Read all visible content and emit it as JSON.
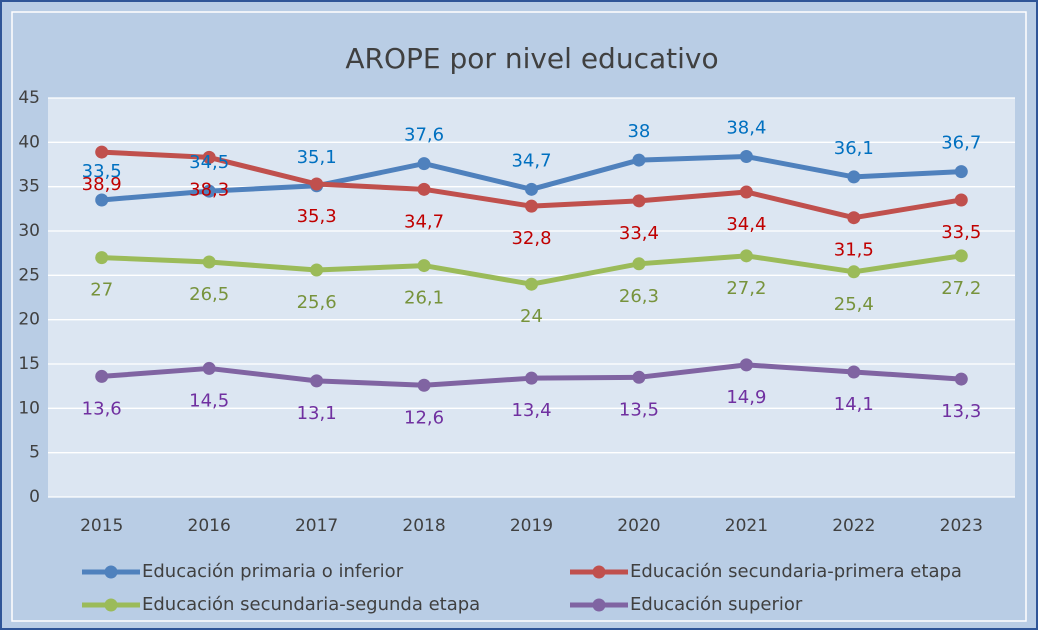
{
  "chart_data": {
    "type": "line",
    "title": "AROPE por nivel educativo",
    "categories": [
      "2015",
      "2016",
      "2017",
      "2018",
      "2019",
      "2020",
      "2021",
      "2022",
      "2023"
    ],
    "ylim": [
      0,
      45
    ],
    "yticks": [
      0,
      5,
      10,
      15,
      20,
      25,
      30,
      35,
      40,
      45
    ],
    "grid": true,
    "legend": "bottom",
    "series": [
      {
        "name": "Educación primaria o inferior",
        "color": "#4f81bd",
        "label_color": "#0070c0",
        "label_position": "above",
        "values": [
          33.5,
          34.5,
          35.1,
          37.6,
          34.7,
          38,
          38.4,
          36.1,
          36.7
        ],
        "value_labels": [
          "33,5",
          "34,5",
          "35,1",
          "37,6",
          "34,7",
          "38",
          "38,4",
          "36,1",
          "36,7"
        ]
      },
      {
        "name": "Educación secundaria-primera etapa",
        "color": "#c0504d",
        "label_color": "#c00000",
        "label_position": "below",
        "values": [
          38.9,
          38.3,
          35.3,
          34.7,
          32.8,
          33.4,
          34.4,
          31.5,
          33.5
        ],
        "value_labels": [
          "38,9",
          "38,3",
          "35,3",
          "34,7",
          "32,8",
          "33,4",
          "34,4",
          "31,5",
          "33,5"
        ]
      },
      {
        "name": "Educación secundaria-segunda etapa",
        "color": "#9bbb59",
        "label_color": "#77933c",
        "label_position": "below",
        "values": [
          27,
          26.5,
          25.6,
          26.1,
          24,
          26.3,
          27.2,
          25.4,
          27.2
        ],
        "value_labels": [
          "27",
          "26,5",
          "25,6",
          "26,1",
          "24",
          "26,3",
          "27,2",
          "25,4",
          "27,2"
        ]
      },
      {
        "name": "Educación superior",
        "color": "#8064a2",
        "label_color": "#7030a0",
        "label_position": "below",
        "values": [
          13.6,
          14.5,
          13.1,
          12.6,
          13.4,
          13.5,
          14.9,
          14.1,
          13.3
        ],
        "value_labels": [
          "13,6",
          "14,5",
          "13,1",
          "12,6",
          "13,4",
          "13,5",
          "14,9",
          "14,1",
          "13,3"
        ]
      }
    ]
  }
}
